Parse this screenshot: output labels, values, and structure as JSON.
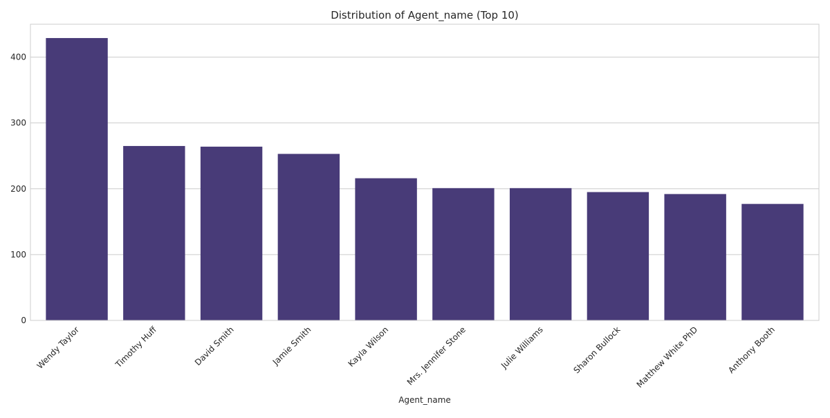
{
  "chart_data": {
    "type": "bar",
    "title": "Distribution of Agent_name (Top 10)",
    "xlabel": "Agent_name",
    "ylabel": "",
    "categories": [
      "Wendy Taylor",
      "Timothy Huff",
      "David Smith",
      "Jamie Smith",
      "Kayla Wilson",
      "Mrs. Jennifer Stone",
      "Julie Williams",
      "Sharon Bullock",
      "Matthew White PhD",
      "Anthony Booth"
    ],
    "values": [
      429,
      265,
      264,
      253,
      216,
      201,
      201,
      195,
      192,
      177
    ],
    "ylim": [
      0,
      450
    ],
    "yticks": [
      0,
      100,
      200,
      300,
      400
    ],
    "grid": true,
    "bar_color": "#483b78"
  }
}
